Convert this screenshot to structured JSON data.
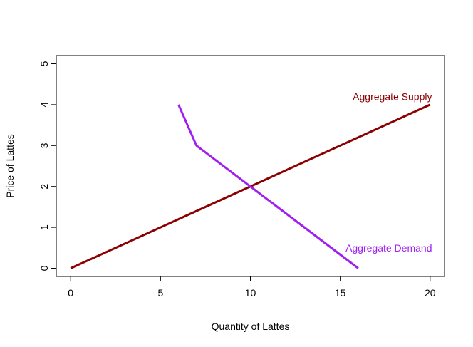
{
  "chart_data": {
    "type": "line",
    "title": "",
    "xlabel": "Quantity of Lattes",
    "ylabel": "Price of Lattes",
    "xlim": [
      -0.8,
      20.8
    ],
    "ylim": [
      -0.2,
      5.2
    ],
    "x_ticks": [
      0,
      5,
      10,
      15,
      20
    ],
    "y_ticks": [
      0,
      1,
      2,
      3,
      4,
      5
    ],
    "grid": false,
    "legend": "none",
    "series": [
      {
        "name": "Aggregate Supply",
        "color": "#8b0000",
        "x": [
          0,
          20
        ],
        "y": [
          0,
          4
        ]
      },
      {
        "name": "Aggregate Demand",
        "color": "#a020f0",
        "x": [
          6,
          7,
          16
        ],
        "y": [
          4,
          3,
          0
        ]
      }
    ],
    "annotations": [
      {
        "text": "Aggregate Supply",
        "x": 17.9,
        "y": 4.2,
        "color": "#8b0000"
      },
      {
        "text": "Aggregate Demand",
        "x": 17.7,
        "y": 0.5,
        "color": "#a020f0"
      }
    ]
  }
}
